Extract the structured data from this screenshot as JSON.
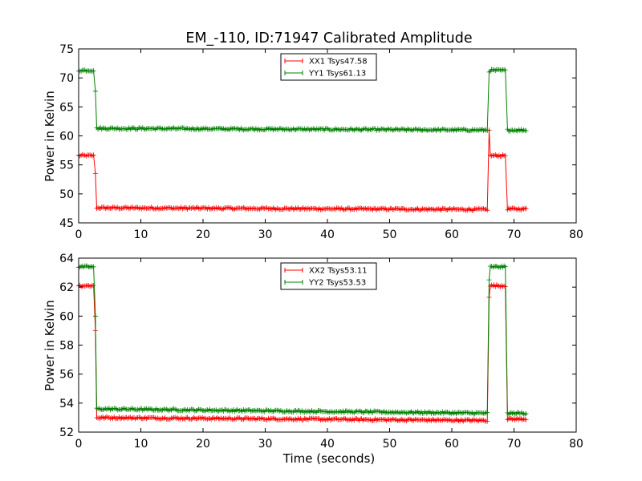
{
  "chart_data": [
    {
      "type": "line",
      "title": "EM_-110, ID:71947 Calibrated Amplitude",
      "xlabel": "",
      "ylabel": "Power in Kelvin",
      "xlim": [
        0,
        80
      ],
      "ylim": [
        45,
        75
      ],
      "x_ticks": [
        "0",
        "10",
        "20",
        "30",
        "40",
        "50",
        "60",
        "70",
        "80"
      ],
      "y_ticks": [
        "45",
        "50",
        "55",
        "60",
        "65",
        "70",
        "75"
      ],
      "legend_position": "top-center",
      "x_range": [
        0,
        72
      ],
      "step_times": [
        2.7,
        66,
        68.8
      ],
      "series": [
        {
          "name": "XX1 Tsys47.58",
          "color": "#ff0000",
          "on_level": 56.6,
          "off_level_start": 47.6,
          "off_level_end": 47.3,
          "after_level": 47.4,
          "transition_values": [
            53.5,
            61.0
          ]
        },
        {
          "name": "YY1 Tsys61.13",
          "color": "#008000",
          "on_level": 71.3,
          "off_level_start": 61.3,
          "off_level_end": 61.0,
          "after_level": 61.0,
          "transition_values": [
            67.7,
            71.0
          ]
        }
      ]
    },
    {
      "type": "line",
      "title": "",
      "xlabel": "Time (seconds)",
      "ylabel": "Power in Kelvin",
      "xlim": [
        0,
        80
      ],
      "ylim": [
        52,
        64
      ],
      "x_ticks": [
        "0",
        "10",
        "20",
        "30",
        "40",
        "50",
        "60",
        "70",
        "80"
      ],
      "y_ticks": [
        "52",
        "54",
        "56",
        "58",
        "60",
        "62",
        "64"
      ],
      "legend_position": "top-center",
      "x_range": [
        0,
        72
      ],
      "step_times": [
        2.7,
        66,
        68.8
      ],
      "series": [
        {
          "name": "XX2 Tsys53.11",
          "color": "#ff0000",
          "on_level": 62.1,
          "off_level_start": 53.0,
          "off_level_end": 52.8,
          "after_level": 52.9,
          "transition_values": [
            59.0,
            61.3
          ]
        },
        {
          "name": "YY2 Tsys53.53",
          "color": "#008000",
          "on_level": 63.4,
          "off_level_start": 53.6,
          "off_level_end": 53.3,
          "after_level": 53.3,
          "transition_values": [
            60.0,
            62.5
          ]
        }
      ]
    }
  ]
}
